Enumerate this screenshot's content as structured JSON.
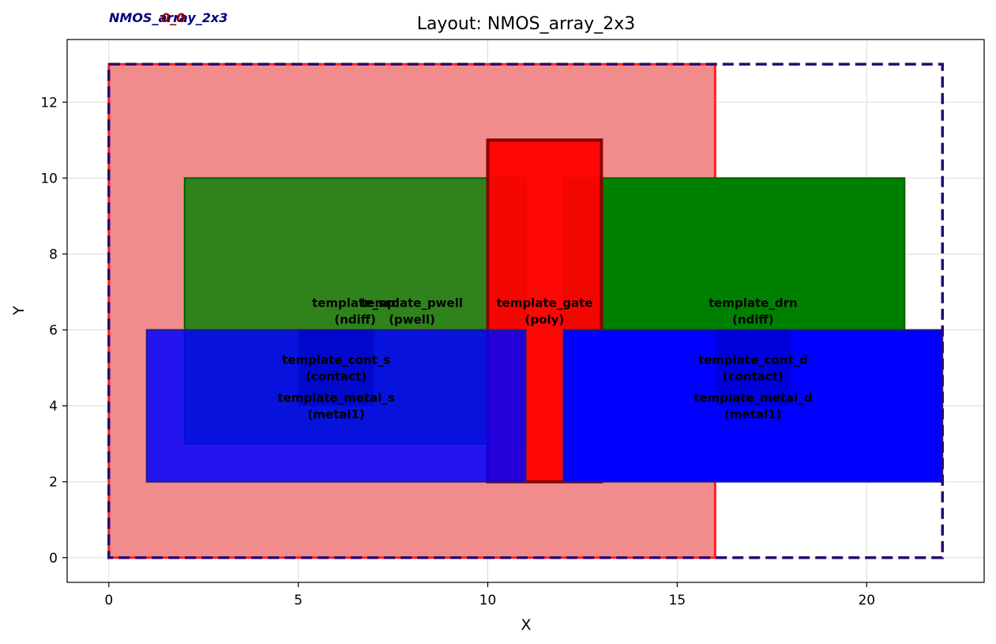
{
  "chart_data": {
    "type": "layout",
    "title": "Layout: NMOS_array_2x3",
    "xlabel": "X",
    "ylabel": "Y",
    "xlim": [
      -1.1,
      23.1
    ],
    "ylim": [
      -0.65,
      13.65
    ],
    "xticks": [
      0,
      5,
      10,
      15,
      20
    ],
    "yticks": [
      0,
      2,
      4,
      6,
      8,
      10,
      12
    ],
    "grid": true,
    "corner_labels": [
      {
        "text": "NMOS_array_2x3",
        "color": "#000080"
      },
      {
        "text": "0_0",
        "color": "#8b0000"
      }
    ],
    "shapes": [
      {
        "name": "template_pwell",
        "layer": "pwell",
        "x": [
          0,
          16
        ],
        "y": [
          0,
          13
        ],
        "fill": "#f08080",
        "fill_opacity": 0.9,
        "stroke": "#ff2020",
        "stroke_width": 3
      },
      {
        "name": "template_src",
        "layer": "ndiff",
        "x": [
          2,
          11
        ],
        "y": [
          3,
          10
        ],
        "fill": "#008000",
        "fill_opacity": 0.8,
        "stroke": "#006000",
        "stroke_width": 2
      },
      {
        "name": "template_drn",
        "layer": "ndiff",
        "x": [
          12,
          21
        ],
        "y": [
          3,
          10
        ],
        "fill": "#008000",
        "fill_opacity": 1.0,
        "stroke": "#006000",
        "stroke_width": 2
      },
      {
        "name": "template_gate",
        "layer": "poly",
        "x": [
          10,
          13
        ],
        "y": [
          2,
          11
        ],
        "fill": "#ff0000",
        "fill_opacity": 0.95,
        "stroke": "#8b0000",
        "stroke_width": 4
      },
      {
        "name": "template_metal_s",
        "layer": "metal1",
        "x": [
          1,
          11
        ],
        "y": [
          2,
          6
        ],
        "fill": "#0000ff",
        "fill_opacity": 0.85,
        "stroke": "#1e1e80",
        "stroke_width": 2
      },
      {
        "name": "template_metal_d",
        "layer": "metal1",
        "x": [
          12,
          22
        ],
        "y": [
          2,
          6
        ],
        "fill": "#0000ff",
        "fill_opacity": 1.0,
        "stroke": "#1e1e80",
        "stroke_width": 2
      },
      {
        "name": "template_cont_s",
        "layer": "contact",
        "x": [
          5,
          7
        ],
        "y": [
          4,
          6
        ],
        "fill": "#0000c0",
        "fill_opacity": 0.55,
        "stroke": "none",
        "stroke_width": 0
      },
      {
        "name": "template_cont_d",
        "layer": "contact",
        "x": [
          16,
          18
        ],
        "y": [
          4,
          6
        ],
        "fill": "#0000c0",
        "fill_opacity": 0.55,
        "stroke": "none",
        "stroke_width": 0
      },
      {
        "name": "NMOS_array_2x3",
        "layer": "boundary",
        "x": [
          0,
          22
        ],
        "y": [
          0,
          13
        ],
        "fill": "none",
        "fill_opacity": 0,
        "stroke": "#2a0a6e",
        "stroke_width": 3.5,
        "dashed": true
      }
    ],
    "annotations": [
      {
        "lines": [
          "template_src",
          "(ndiff)"
        ],
        "x": 6.5,
        "y": 6.5
      },
      {
        "lines": [
          "template_pwell",
          "(pwell)"
        ],
        "x": 8.0,
        "y": 6.5
      },
      {
        "lines": [
          "template_gate",
          "(poly)"
        ],
        "x": 11.5,
        "y": 6.5
      },
      {
        "lines": [
          "template_drn",
          "(ndiff)"
        ],
        "x": 17.0,
        "y": 6.5
      },
      {
        "lines": [
          "template_cont_s",
          "(contact)"
        ],
        "x": 6.0,
        "y": 5.0
      },
      {
        "lines": [
          "template_cont_d",
          "(contact)"
        ],
        "x": 17.0,
        "y": 5.0
      },
      {
        "lines": [
          "template_metal_s",
          "(metal1)"
        ],
        "x": 6.0,
        "y": 4.0
      },
      {
        "lines": [
          "template_metal_d",
          "(metal1)"
        ],
        "x": 17.0,
        "y": 4.0
      }
    ]
  }
}
